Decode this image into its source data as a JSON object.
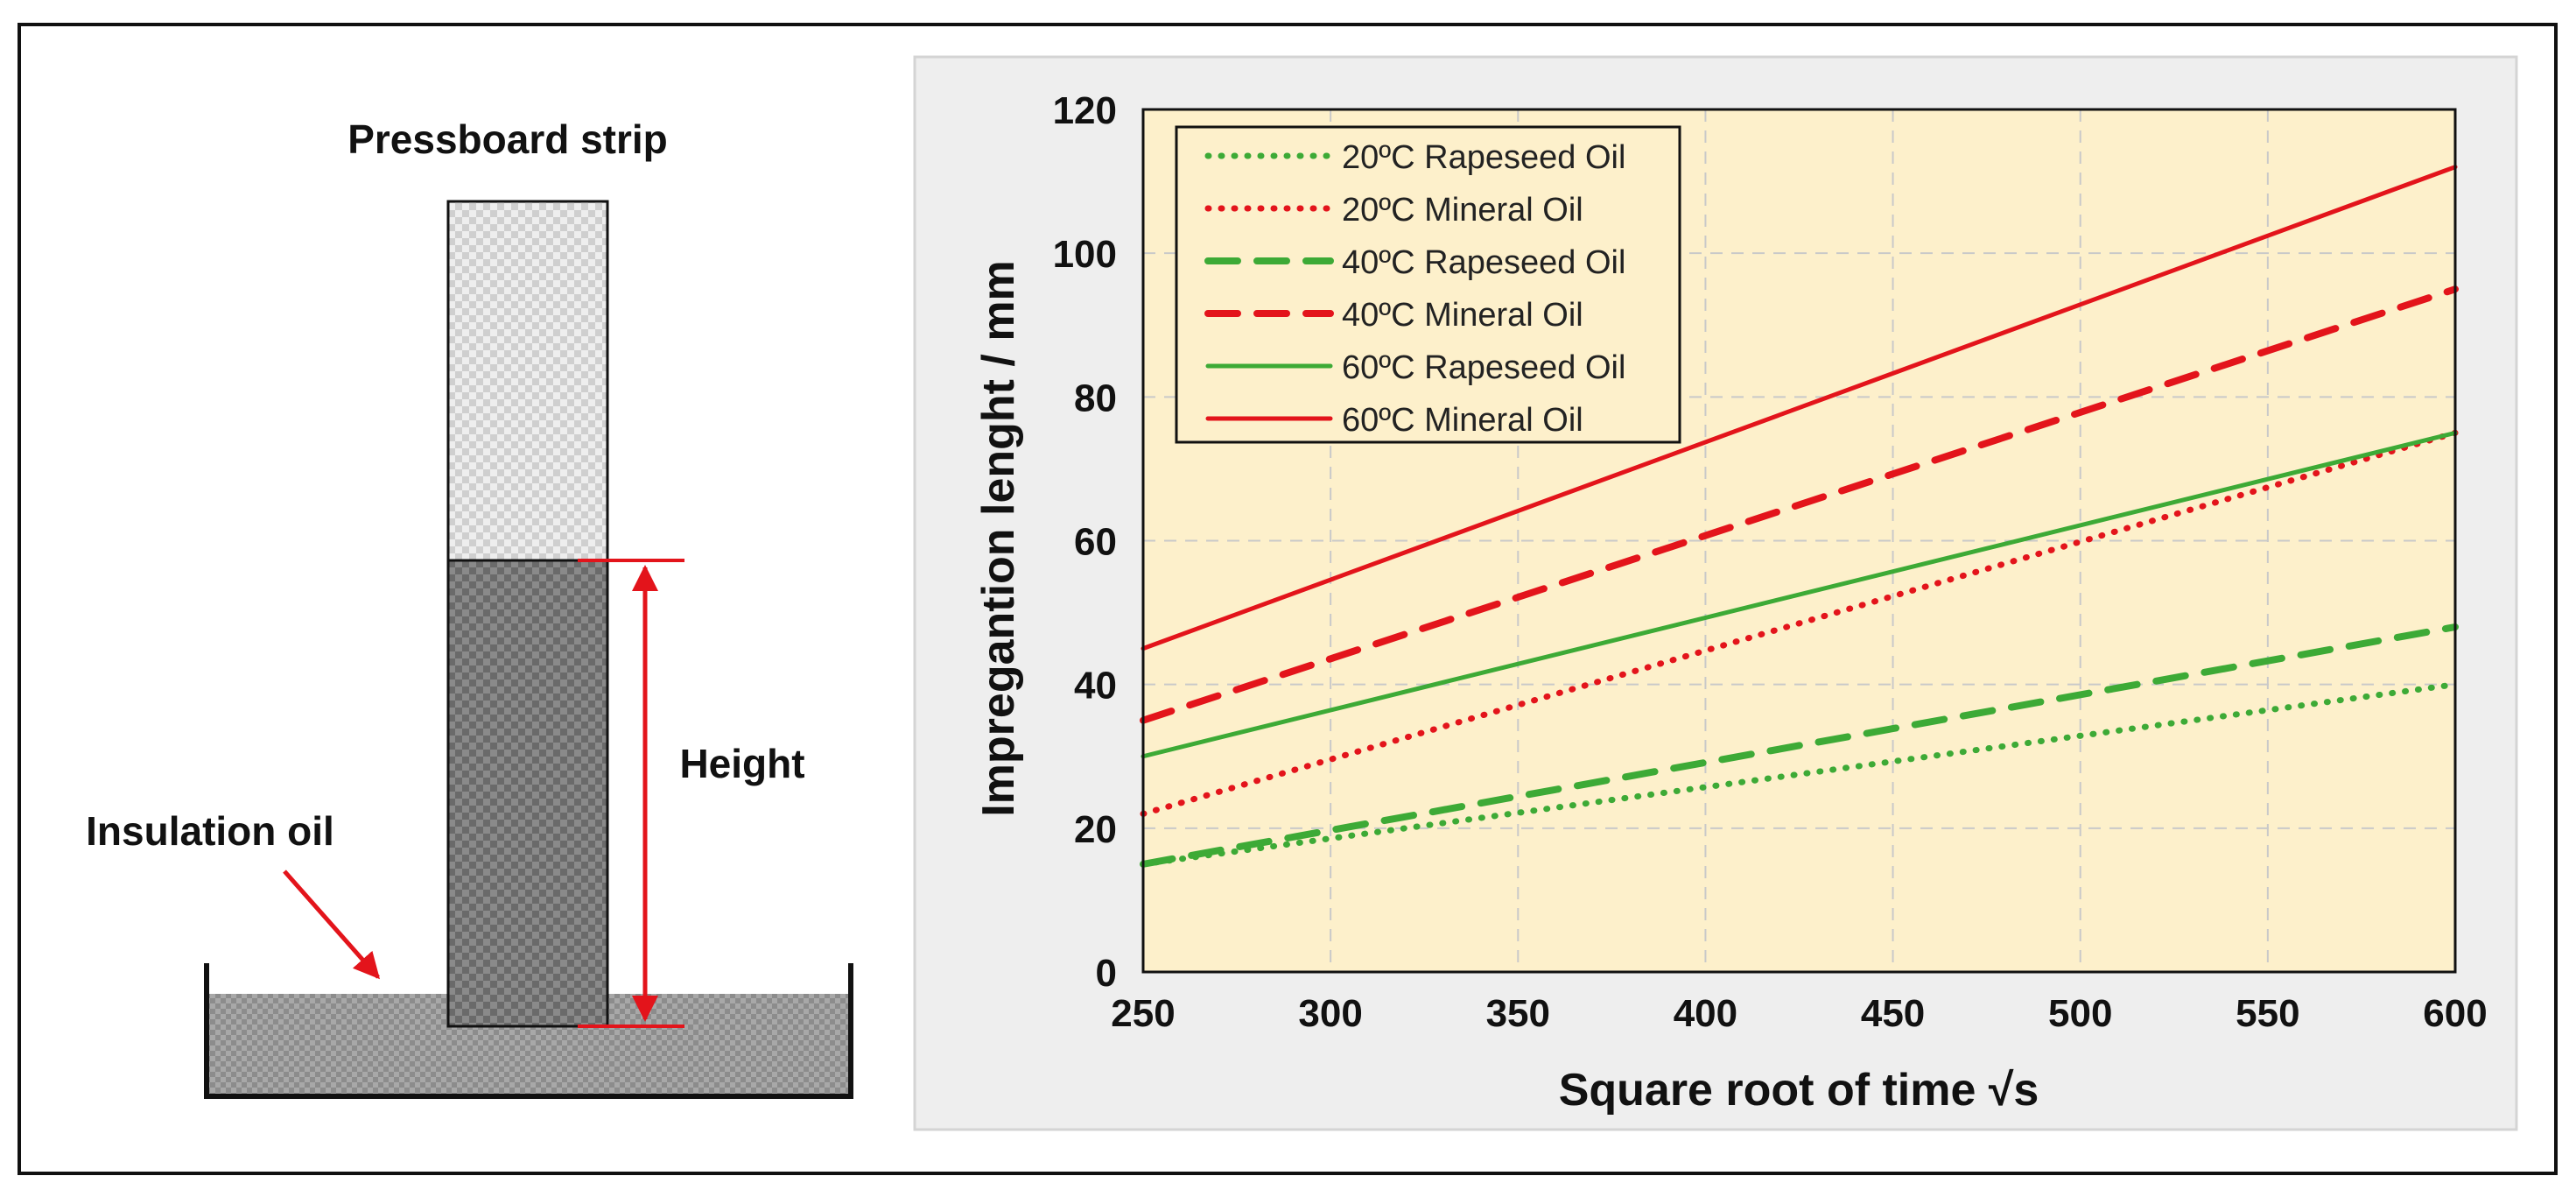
{
  "diagram": {
    "title": "Pressboard strip",
    "oil_label": "Insulation oil",
    "height_label": "Height"
  },
  "colors": {
    "green": "#3DAA36",
    "red": "#E3141B",
    "plot_bg": "#FDF0CB",
    "panel_bg": "#EEEEEE"
  },
  "chart_data": {
    "type": "line",
    "xlabel": "Square root of time √s",
    "ylabel": "Impregantion lenght / mm",
    "xlim": [
      250,
      600
    ],
    "ylim": [
      0,
      120
    ],
    "xticks": [
      "250",
      "300",
      "350",
      "400",
      "450",
      "500",
      "550",
      "600"
    ],
    "yticks": [
      "0",
      "20",
      "40",
      "60",
      "80",
      "100",
      "120"
    ],
    "grid": true,
    "legend_position": "top-left",
    "series": [
      {
        "name": "20ºC Rapeseed Oil",
        "color": "#3DAA36",
        "style": "dotted",
        "x": [
          250,
          600
        ],
        "y": [
          15,
          40
        ]
      },
      {
        "name": "20ºC Mineral Oil",
        "color": "#E3141B",
        "style": "dotted",
        "x": [
          250,
          600
        ],
        "y": [
          22,
          75
        ]
      },
      {
        "name": "40ºC Rapeseed Oil",
        "color": "#3DAA36",
        "style": "dashed",
        "x": [
          250,
          600
        ],
        "y": [
          15,
          48
        ]
      },
      {
        "name": "40ºC Mineral Oil",
        "color": "#E3141B",
        "style": "dashed",
        "x": [
          250,
          600
        ],
        "y": [
          35,
          95
        ]
      },
      {
        "name": "60ºC Rapeseed Oil",
        "color": "#3DAA36",
        "style": "solid",
        "x": [
          250,
          600
        ],
        "y": [
          30,
          75
        ]
      },
      {
        "name": "60ºC Mineral Oil",
        "color": "#E3141B",
        "style": "solid",
        "x": [
          250,
          600
        ],
        "y": [
          45,
          112
        ]
      }
    ]
  }
}
